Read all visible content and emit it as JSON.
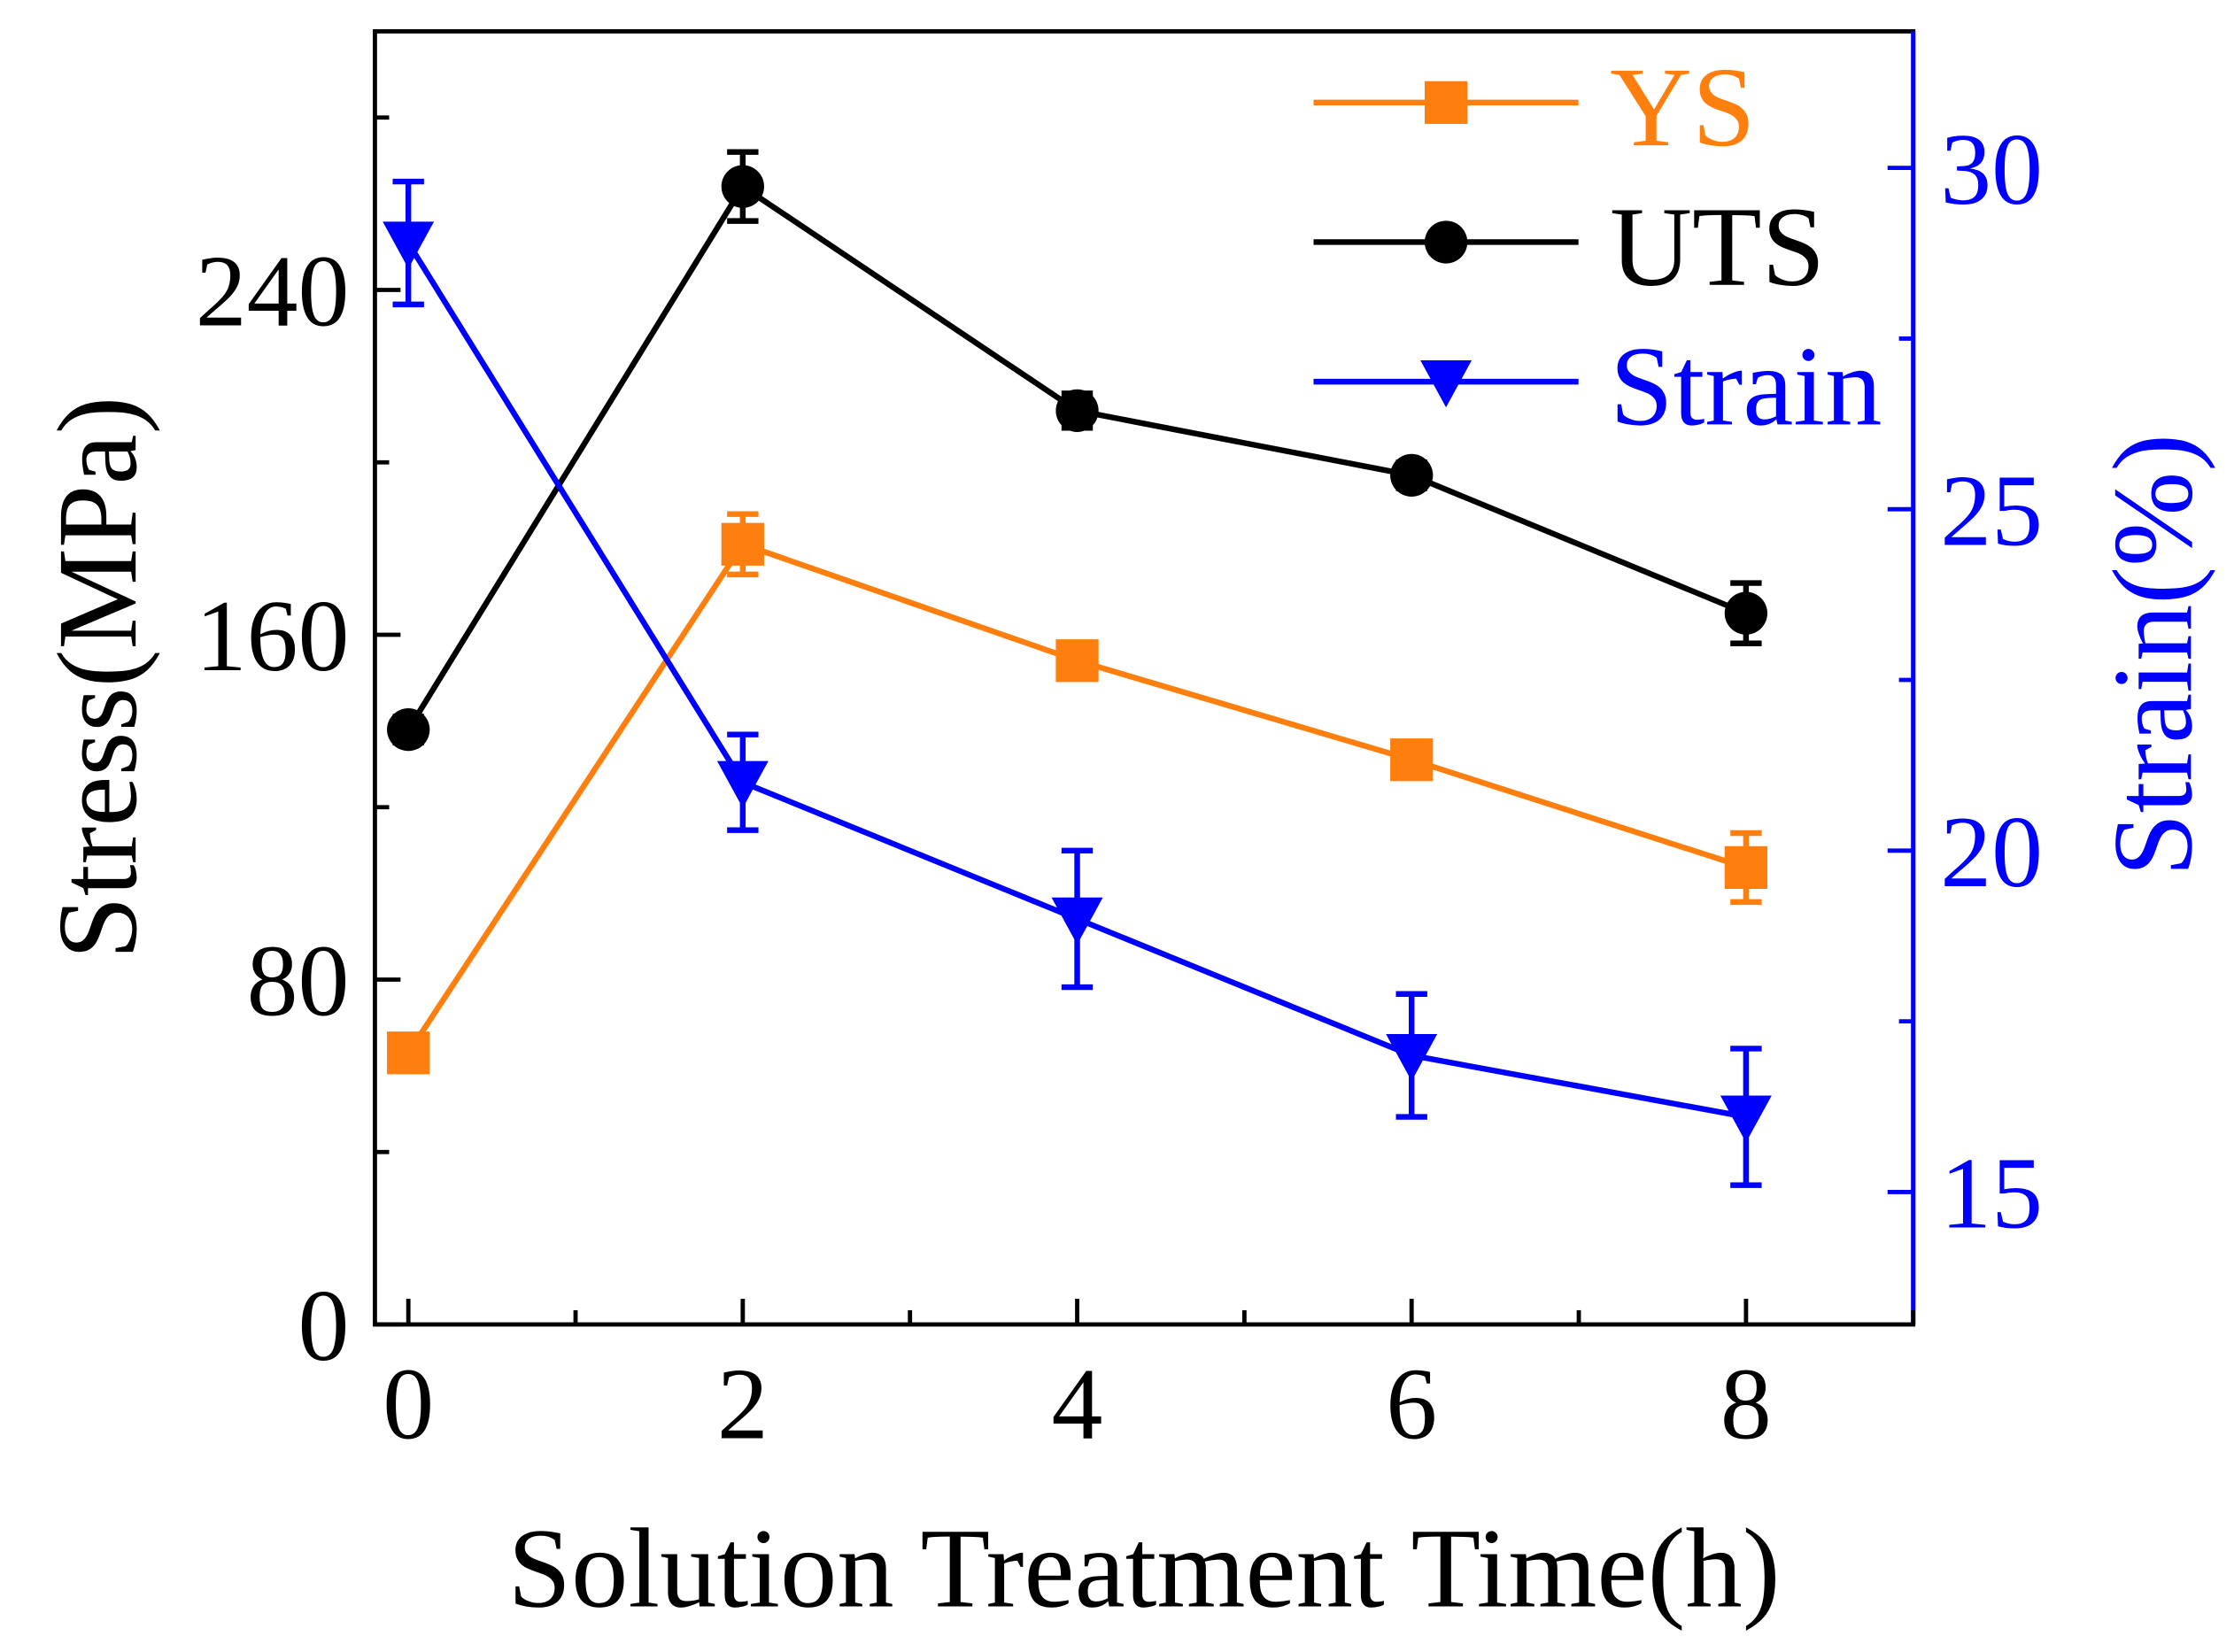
{
  "chart_data": {
    "type": "line",
    "title": "",
    "xlabel": "Solution Treatment Time(h)",
    "ylabel": "Stress(MPa)",
    "y2label": "Strain(%)",
    "x": [
      0,
      2,
      4,
      6,
      8
    ],
    "xlim": [
      -0.2,
      9
    ],
    "ylim": [
      0,
      300
    ],
    "y2lim": [
      13.06,
      32
    ],
    "xticks": [
      0,
      2,
      4,
      6,
      8
    ],
    "xtick_labels": [
      "0",
      "2",
      "4",
      "6",
      "8"
    ],
    "yticks": [
      0,
      80,
      160,
      240
    ],
    "ytick_labels": [
      "0",
      "80",
      "160",
      "240"
    ],
    "y2ticks": [
      15,
      20,
      25,
      30
    ],
    "y2tick_labels": [
      "15",
      "20",
      "25",
      "30"
    ],
    "grid": false,
    "legend_position": "top-right",
    "series": [
      {
        "name": "YS",
        "axis": "left",
        "color": "#ff7f0e",
        "marker": "square",
        "values": [
          63,
          181,
          154,
          131,
          106
        ],
        "errors": [
          3,
          7,
          4,
          3,
          8
        ]
      },
      {
        "name": "UTS",
        "axis": "left",
        "color": "#000000",
        "marker": "circle",
        "values": [
          138,
          264,
          212,
          197,
          165
        ],
        "errors": [
          3,
          8,
          4,
          3,
          7
        ]
      },
      {
        "name": "Strain",
        "axis": "right",
        "color": "#0000ff",
        "marker": "triangle-down",
        "values": [
          28.9,
          21.0,
          19.0,
          17.0,
          16.1
        ],
        "errors": [
          0.9,
          0.7,
          1.0,
          0.9,
          1.0
        ]
      }
    ]
  }
}
